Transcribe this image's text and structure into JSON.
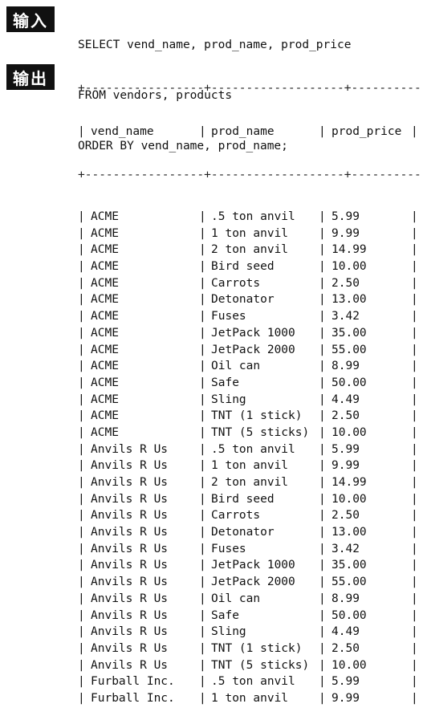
{
  "labels": {
    "input": "输入",
    "output": "输出"
  },
  "query": [
    "SELECT vend_name, prod_name, prod_price",
    "FROM vendors, products",
    "ORDER BY vend_name, prod_name;"
  ],
  "table": {
    "rule": "+-----------------+-------------------+------------+",
    "columns": [
      "vend_name",
      "prod_name",
      "prod_price"
    ],
    "rows": [
      [
        "ACME",
        ".5 ton anvil",
        "5.99"
      ],
      [
        "ACME",
        "1 ton anvil",
        "9.99"
      ],
      [
        "ACME",
        "2 ton anvil",
        "14.99"
      ],
      [
        "ACME",
        "Bird seed",
        "10.00"
      ],
      [
        "ACME",
        "Carrots",
        "2.50"
      ],
      [
        "ACME",
        "Detonator",
        "13.00"
      ],
      [
        "ACME",
        "Fuses",
        "3.42"
      ],
      [
        "ACME",
        "JetPack 1000",
        "35.00"
      ],
      [
        "ACME",
        "JetPack 2000",
        "55.00"
      ],
      [
        "ACME",
        "Oil can",
        "8.99"
      ],
      [
        "ACME",
        "Safe",
        "50.00"
      ],
      [
        "ACME",
        "Sling",
        "4.49"
      ],
      [
        "ACME",
        "TNT (1 stick)",
        "2.50"
      ],
      [
        "ACME",
        "TNT (5 sticks)",
        "10.00"
      ],
      [
        "Anvils R Us",
        ".5 ton anvil",
        "5.99"
      ],
      [
        "Anvils R Us",
        "1 ton anvil",
        "9.99"
      ],
      [
        "Anvils R Us",
        "2 ton anvil",
        "14.99"
      ],
      [
        "Anvils R Us",
        "Bird seed",
        "10.00"
      ],
      [
        "Anvils R Us",
        "Carrots",
        "2.50"
      ],
      [
        "Anvils R Us",
        "Detonator",
        "13.00"
      ],
      [
        "Anvils R Us",
        "Fuses",
        "3.42"
      ],
      [
        "Anvils R Us",
        "JetPack 1000",
        "35.00"
      ],
      [
        "Anvils R Us",
        "JetPack 2000",
        "55.00"
      ],
      [
        "Anvils R Us",
        "Oil can",
        "8.99"
      ],
      [
        "Anvils R Us",
        "Safe",
        "50.00"
      ],
      [
        "Anvils R Us",
        "Sling",
        "4.49"
      ],
      [
        "Anvils R Us",
        "TNT (1 stick)",
        "2.50"
      ],
      [
        "Anvils R Us",
        "TNT (5 sticks)",
        "10.00"
      ],
      [
        "Furball Inc.",
        ".5 ton anvil",
        "5.99"
      ],
      [
        "Furball Inc.",
        "1 ton anvil",
        "9.99"
      ]
    ]
  }
}
